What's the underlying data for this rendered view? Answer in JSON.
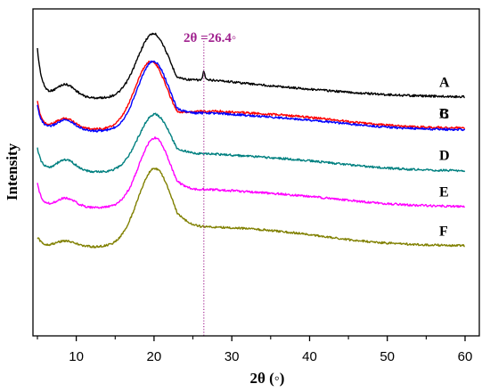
{
  "chart_data": {
    "type": "line",
    "xlabel": "2θ (◦)",
    "ylabel": "Intensity",
    "xlim": [
      4,
      61
    ],
    "xticks": [
      10,
      20,
      30,
      40,
      50,
      60
    ],
    "yticks_shown": false,
    "grid": false,
    "legend": "inline labels at right end of each curve",
    "annotation": {
      "text": "2θ =26.4◦",
      "x": 26.4,
      "style": "dotted vertical line",
      "color": "#a0208e"
    },
    "series": [
      {
        "name": "A",
        "color": "#000000",
        "baseline_offset": 5,
        "shape": {
          "start": 1.5,
          "sh_amp": 0.4,
          "pk_amp": 1.9,
          "pk_center": 19.9,
          "pk_width": 2.9,
          "tail_amp": 0.82,
          "tail_center": 23,
          "tail_decay": 12,
          "bump_amp": 0.07,
          "bump_center": 38,
          "bump_width": 10,
          "end": 0.05,
          "spike": 0.25
        },
        "points": [
          [
            5,
            6.2
          ],
          [
            6,
            5.7
          ],
          [
            8,
            5.45
          ],
          [
            10,
            5.4
          ],
          [
            12,
            5.4
          ],
          [
            15,
            5.8
          ],
          [
            18,
            6.8
          ],
          [
            19.9,
            7.1
          ],
          [
            22,
            6.8
          ],
          [
            24,
            6.3
          ],
          [
            26.4,
            6.2
          ],
          [
            27,
            5.9
          ],
          [
            30,
            5.6
          ],
          [
            35,
            5.4
          ],
          [
            40,
            5.3
          ],
          [
            45,
            5.25
          ],
          [
            50,
            5.15
          ],
          [
            55,
            5.1
          ],
          [
            60,
            5.05
          ]
        ]
      },
      {
        "name": "B",
        "color": "#ff0000",
        "baseline_offset": 4,
        "shape": {
          "start": 0.85,
          "sh_amp": 0.32,
          "pk_amp": 2.0,
          "pk_center": 19.6,
          "pk_width": 2.9,
          "tail_amp": 0.78,
          "tail_center": 23,
          "tail_decay": 12,
          "bump_amp": 0.17,
          "bump_center": 38,
          "bump_width": 10,
          "end": 0.05,
          "spike": 0
        },
        "points": [
          [
            5,
            4.9
          ],
          [
            8.5,
            4.5
          ],
          [
            12,
            4.55
          ],
          [
            16,
            5.2
          ],
          [
            19.6,
            6.0
          ],
          [
            22,
            5.6
          ],
          [
            26,
            4.9
          ],
          [
            30,
            4.65
          ],
          [
            38,
            4.55
          ],
          [
            45,
            4.35
          ],
          [
            60,
            4.1
          ]
        ]
      },
      {
        "name": "C",
        "color": "#0000ff",
        "baseline_offset": 3,
        "shape": {
          "start": 0.8,
          "sh_amp": 0.32,
          "pk_amp": 2.05,
          "pk_center": 19.9,
          "pk_width": 2.9,
          "tail_amp": 0.78,
          "tail_center": 23,
          "tail_decay": 12,
          "bump_amp": 0.14,
          "bump_center": 38,
          "bump_width": 10,
          "end": 0.05,
          "spike": 0
        },
        "points": [
          [
            5,
            3.8
          ],
          [
            9,
            3.6
          ],
          [
            12,
            3.5
          ],
          [
            16,
            4.2
          ],
          [
            19.9,
            5.05
          ],
          [
            22,
            4.7
          ],
          [
            26,
            3.9
          ],
          [
            30,
            3.65
          ],
          [
            38,
            3.5
          ],
          [
            45,
            3.35
          ],
          [
            60,
            3.05
          ]
        ]
      },
      {
        "name": "D",
        "color": "#008080",
        "baseline_offset": 2,
        "shape": {
          "start": 0.75,
          "sh_amp": 0.36,
          "pk_amp": 1.7,
          "pk_center": 20.1,
          "pk_width": 3.0,
          "tail_amp": 0.78,
          "tail_center": 23,
          "tail_decay": 12,
          "bump_amp": 0.15,
          "bump_center": 38,
          "bump_width": 10,
          "end": 0.05,
          "spike": 0
        },
        "points": [
          [
            5,
            2.75
          ],
          [
            9,
            2.7
          ],
          [
            12,
            2.5
          ],
          [
            16,
            3.1
          ],
          [
            20.1,
            3.75
          ],
          [
            22,
            3.55
          ],
          [
            26,
            2.95
          ],
          [
            30,
            2.6
          ],
          [
            38,
            2.5
          ],
          [
            45,
            2.35
          ],
          [
            60,
            2.05
          ]
        ]
      },
      {
        "name": "E",
        "color": "#ff00ff",
        "baseline_offset": 1,
        "shape": {
          "start": 0.75,
          "sh_amp": 0.28,
          "pk_amp": 2.05,
          "pk_center": 20.1,
          "pk_width": 2.9,
          "tail_amp": 0.78,
          "tail_center": 23,
          "tail_decay": 12,
          "bump_amp": 0.15,
          "bump_center": 38,
          "bump_width": 10,
          "end": 0.05,
          "spike": 0
        },
        "points": [
          [
            5,
            1.7
          ],
          [
            9,
            1.5
          ],
          [
            12,
            1.45
          ],
          [
            16,
            2.2
          ],
          [
            20.1,
            3.05
          ],
          [
            22,
            2.7
          ],
          [
            26,
            1.9
          ],
          [
            30,
            1.6
          ],
          [
            38,
            1.5
          ],
          [
            45,
            1.35
          ],
          [
            60,
            1.05
          ]
        ]
      },
      {
        "name": "F",
        "color": "#808000",
        "baseline_offset": 0,
        "shape": {
          "start": 0.35,
          "sh_amp": 0.18,
          "pk_amp": 2.3,
          "pk_center": 20.1,
          "pk_width": 3.1,
          "tail_amp": 0.78,
          "tail_center": 23,
          "tail_decay": 12,
          "bump_amp": 0.2,
          "bump_center": 36,
          "bump_width": 10,
          "end": 0.05,
          "spike": 0
        },
        "points": [
          [
            5,
            0.35
          ],
          [
            9,
            0.2
          ],
          [
            12,
            0.3
          ],
          [
            16,
            1.2
          ],
          [
            20.1,
            2.3
          ],
          [
            22,
            2.0
          ],
          [
            26,
            1.1
          ],
          [
            30,
            0.7
          ],
          [
            36,
            0.5
          ],
          [
            45,
            0.35
          ],
          [
            60,
            0.05
          ]
        ]
      }
    ]
  }
}
